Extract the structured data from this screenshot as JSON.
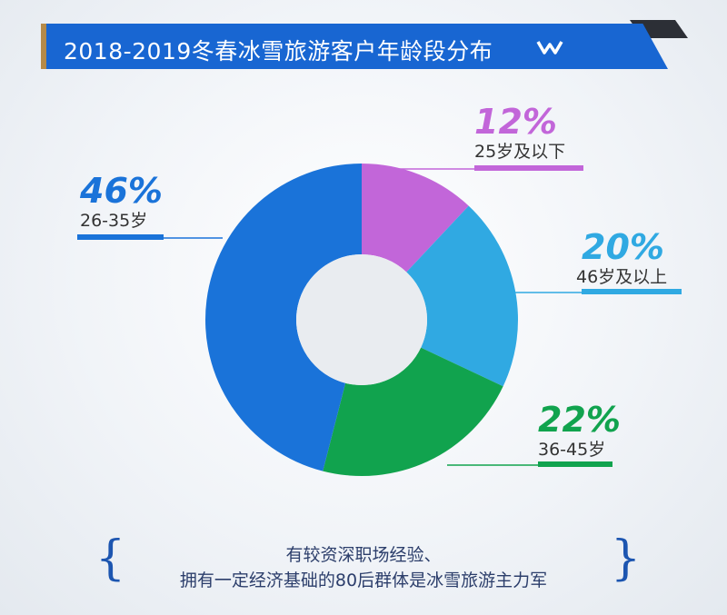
{
  "header": {
    "title": "2018-2019冬春冰雪旅游客户年龄段分布",
    "bar_color": "#1866d2"
  },
  "chart_data": {
    "type": "pie",
    "title": "2018-2019冬春冰雪旅游客户年龄段分布",
    "categories": [
      "25岁及以下",
      "46岁及以上",
      "36-45岁",
      "26-35岁"
    ],
    "values": [
      12,
      20,
      22,
      46
    ],
    "labels": [
      "12%",
      "20%",
      "22%",
      "46%"
    ],
    "colors": [
      "#c266d9",
      "#30a9e2",
      "#11a34e",
      "#1a73d9"
    ],
    "donut": true
  },
  "footer": {
    "line1": "有较资深职场经验、",
    "line2": "拥有一定经济基础的80后群体是冰雪旅游主力军",
    "brace_open": "{",
    "brace_close": "}"
  }
}
